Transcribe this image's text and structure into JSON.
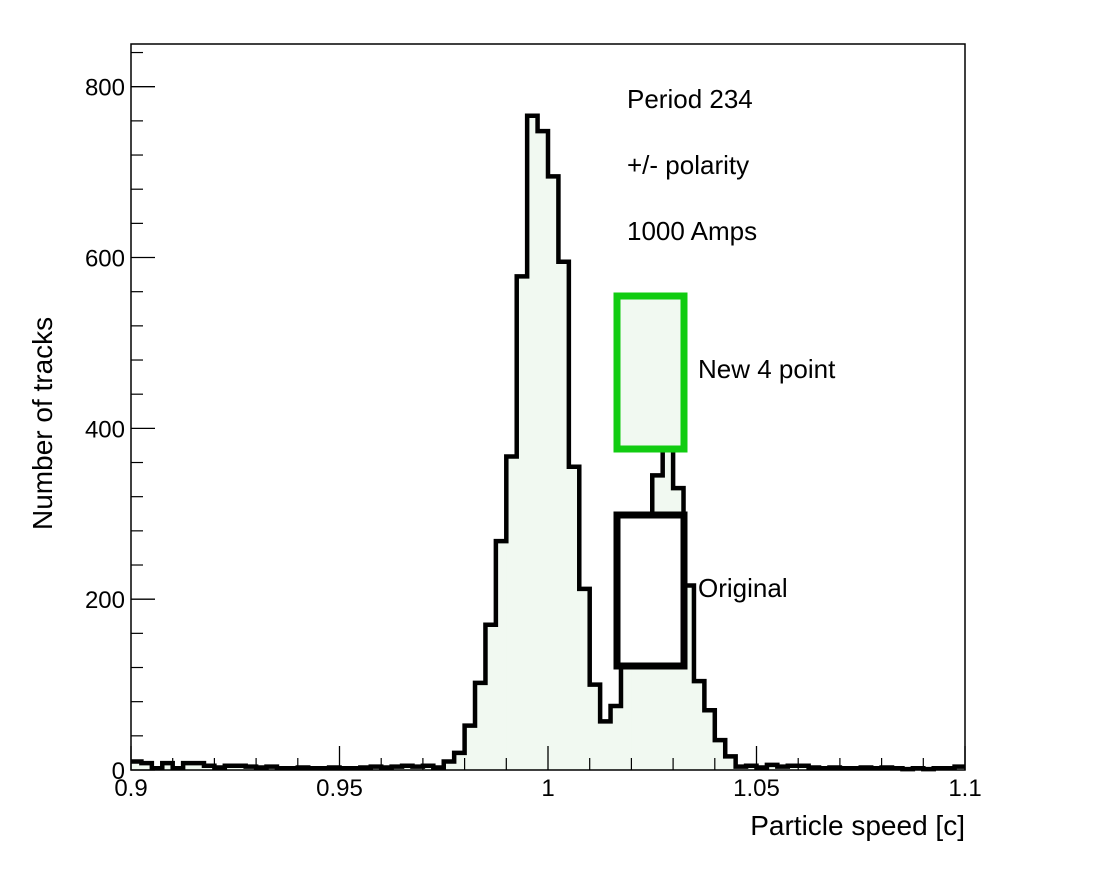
{
  "chart_data": {
    "type": "histogram",
    "xlabel": "Particle speed [c]",
    "ylabel": "Number of tracks",
    "xlim": [
      0.9,
      1.1
    ],
    "ylim": [
      0,
      850
    ],
    "bin_width": 0.0025,
    "x_ticks": [
      {
        "value": 0.9,
        "label": "0.9"
      },
      {
        "value": 0.95,
        "label": "0.95"
      },
      {
        "value": 1.0,
        "label": "1"
      },
      {
        "value": 1.05,
        "label": "1.05"
      },
      {
        "value": 1.1,
        "label": "1.1"
      }
    ],
    "y_ticks": [
      {
        "value": 0,
        "label": "0"
      },
      {
        "value": 200,
        "label": "200"
      },
      {
        "value": 400,
        "label": "400"
      },
      {
        "value": 600,
        "label": "600"
      },
      {
        "value": 800,
        "label": "800"
      }
    ],
    "annotations": [
      "Period 234",
      "+/- polarity",
      "1000 Amps"
    ],
    "series": [
      {
        "name": "Original",
        "line_color": "#000000",
        "fill_color": "#f1f9f1",
        "values": [
          10,
          8,
          2,
          8,
          2,
          8,
          8,
          5,
          3,
          5,
          5,
          4,
          3,
          4,
          2,
          2,
          3,
          2,
          2,
          3,
          2,
          2,
          3,
          4,
          3,
          4,
          5,
          4,
          5,
          3,
          10,
          20,
          52,
          102,
          170,
          268,
          367,
          578,
          766,
          748,
          695,
          595,
          355,
          212,
          100,
          57,
          75,
          125,
          215,
          252,
          345,
          375,
          330,
          216,
          104,
          70,
          35,
          16,
          4,
          5,
          3,
          6,
          4,
          5,
          5,
          3,
          2,
          3,
          2,
          2,
          3,
          2,
          3,
          2,
          1,
          2,
          1,
          2,
          2,
          4
        ]
      },
      {
        "name": "New 4 point",
        "line_color": "#00c000",
        "fill_color": "#f1f9f1",
        "values": []
      }
    ],
    "legend": [
      {
        "label": "New 4 point",
        "color": "#11cc11",
        "fill": "#f1f9f1"
      },
      {
        "label": "Original",
        "color": "#000000",
        "fill": "#ffffff"
      }
    ],
    "legend_placement": "right, inside plot",
    "grid": false
  }
}
